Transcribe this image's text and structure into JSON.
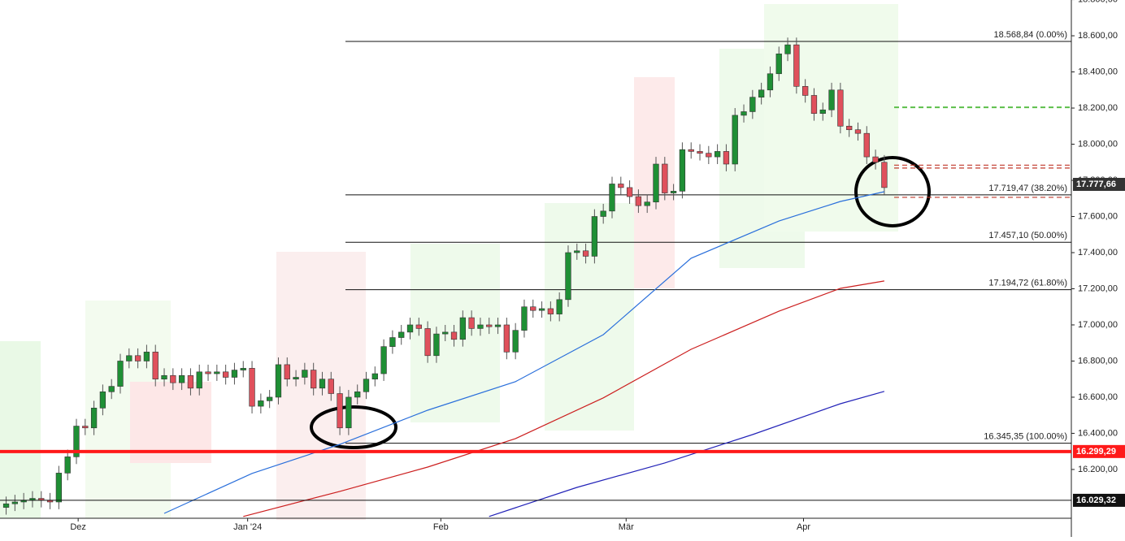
{
  "chart_data": {
    "type": "candlestick",
    "up_color": "#1f8f35",
    "down_color": "#e0505c",
    "grid": false,
    "xlim": [
      -0.7,
      121.3
    ],
    "xticks": [
      {
        "value": 8.2,
        "label": "Dez"
      },
      {
        "value": 27.5,
        "label": "Jan '24"
      },
      {
        "value": 49.5,
        "label": "Feb"
      },
      {
        "value": 70.6,
        "label": "Mär"
      },
      {
        "value": 90.8,
        "label": "Apr"
      }
    ],
    "ylim": [
      15930,
      18798
    ],
    "yticks": [
      {
        "value": 16200,
        "label": "16.200,00"
      },
      {
        "value": 16400,
        "label": "16.400,00"
      },
      {
        "value": 16600,
        "label": "16.600,00"
      },
      {
        "value": 16800,
        "label": "16.800,00"
      },
      {
        "value": 17000,
        "label": "17.000,00"
      },
      {
        "value": 17200,
        "label": "17.200,00"
      },
      {
        "value": 17400,
        "label": "17.400,00"
      },
      {
        "value": 17600,
        "label": "17.600,00"
      },
      {
        "value": 17800,
        "label": "17.800,00"
      },
      {
        "value": 18000,
        "label": "18.000,00"
      },
      {
        "value": 18200,
        "label": "18.200,00"
      },
      {
        "value": 18400,
        "label": "18.400,00"
      },
      {
        "value": 18600,
        "label": "18.600,00"
      },
      {
        "value": 18800,
        "label": "18.800,00"
      }
    ],
    "open": [
      15990,
      16010,
      16020,
      16030,
      16040,
      16030,
      16020,
      16180,
      16270,
      16440,
      16430,
      16540,
      16630,
      16660,
      16800,
      16830,
      16800,
      16850,
      16700,
      16720,
      16680,
      16720,
      16650,
      16740,
      16730,
      16740,
      16710,
      16750,
      16760,
      16550,
      16580,
      16600,
      16780,
      16700,
      16710,
      16750,
      16650,
      16700,
      16620,
      16430,
      16600,
      16630,
      16700,
      16730,
      16880,
      16930,
      16960,
      17000,
      16980,
      16830,
      16950,
      16960,
      16920,
      17040,
      16980,
      17000,
      16990,
      17000,
      16850,
      16970,
      17100,
      17080,
      17090,
      17060,
      17140,
      17400,
      17410,
      17380,
      17600,
      17630,
      17780,
      17760,
      17710,
      17660,
      17680,
      17890,
      17730,
      17740,
      17970,
      17960,
      17950,
      17930,
      17960,
      17890,
      18160,
      18180,
      18260,
      18300,
      18390,
      18500,
      18550,
      18320,
      18270,
      18170,
      18190,
      18300,
      18100,
      18080,
      18060,
      17930,
      17900
    ],
    "high": [
      16050,
      16060,
      16070,
      16080,
      16080,
      16070,
      16220,
      16310,
      16480,
      16480,
      16580,
      16670,
      16700,
      16840,
      16870,
      16870,
      16890,
      16890,
      16760,
      16760,
      16760,
      16760,
      16780,
      16780,
      16780,
      16780,
      16790,
      16800,
      16800,
      16620,
      16640,
      16820,
      16820,
      16750,
      16790,
      16790,
      16740,
      16740,
      16660,
      16640,
      16670,
      16740,
      16770,
      16920,
      16970,
      17000,
      17040,
      17040,
      17020,
      16990,
      17000,
      17000,
      17080,
      17080,
      17040,
      17040,
      17040,
      17040,
      17010,
      17140,
      17140,
      17130,
      17130,
      17180,
      17440,
      17450,
      17450,
      17640,
      17670,
      17820,
      17820,
      17800,
      17750,
      17720,
      17930,
      17930,
      17780,
      18010,
      18010,
      18000,
      17990,
      18000,
      18000,
      18200,
      18220,
      18300,
      18340,
      18430,
      18540,
      18590,
      18590,
      18360,
      18310,
      18230,
      18340,
      18340,
      18140,
      18120,
      18100,
      17970,
      17940
    ],
    "low": [
      15950,
      15970,
      15980,
      15990,
      15990,
      15980,
      15980,
      16140,
      16230,
      16390,
      16390,
      16500,
      16590,
      16620,
      16760,
      16760,
      16760,
      16660,
      16660,
      16640,
      16640,
      16610,
      16610,
      16690,
      16690,
      16670,
      16670,
      16710,
      16510,
      16510,
      16540,
      16560,
      16660,
      16660,
      16670,
      16610,
      16610,
      16580,
      16390,
      16390,
      16560,
      16590,
      16660,
      16690,
      16840,
      16890,
      16920,
      16940,
      16790,
      16790,
      16910,
      16880,
      16880,
      16940,
      16940,
      16950,
      16950,
      16810,
      16810,
      16930,
      17040,
      17040,
      17020,
      17020,
      17100,
      17360,
      17340,
      17340,
      17560,
      17590,
      17720,
      17670,
      17620,
      17620,
      17640,
      17690,
      17690,
      17700,
      17920,
      17910,
      17890,
      17890,
      17850,
      17850,
      18120,
      18140,
      18220,
      18260,
      18350,
      18460,
      18280,
      18230,
      18130,
      18130,
      18150,
      18060,
      18040,
      18020,
      17890,
      17860,
      17720
    ],
    "close": [
      16010,
      16020,
      16030,
      16040,
      16030,
      16020,
      16180,
      16270,
      16440,
      16430,
      16540,
      16630,
      16660,
      16800,
      16830,
      16800,
      16850,
      16700,
      16720,
      16680,
      16720,
      16650,
      16740,
      16730,
      16740,
      16710,
      16750,
      16760,
      16550,
      16580,
      16600,
      16780,
      16700,
      16710,
      16750,
      16650,
      16700,
      16620,
      16430,
      16600,
      16630,
      16700,
      16730,
      16880,
      16930,
      16960,
      17000,
      16980,
      16830,
      16950,
      16960,
      16920,
      17040,
      16980,
      17000,
      16990,
      17000,
      16850,
      16970,
      17100,
      17080,
      17090,
      17060,
      17140,
      17400,
      17410,
      17380,
      17600,
      17630,
      17780,
      17760,
      17710,
      17660,
      17680,
      17890,
      17730,
      17740,
      17970,
      17960,
      17950,
      17930,
      17960,
      17890,
      18160,
      18180,
      18260,
      18300,
      18390,
      18500,
      18550,
      18320,
      18270,
      18170,
      18190,
      18300,
      18100,
      18080,
      18060,
      17930,
      17900,
      17760
    ],
    "lines": [
      {
        "color": "#2a6fdb",
        "x": [
          18,
          28,
          38,
          48,
          58,
          68,
          78,
          88,
          95,
          100
        ],
        "values": [
          15957,
          16178,
          16339,
          16528,
          16686,
          16946,
          17369,
          17575,
          17683,
          17737
        ]
      },
      {
        "color": "#cc1f1f",
        "x": [
          27,
          38,
          48,
          58,
          68,
          78,
          88,
          95,
          100
        ],
        "values": [
          15940,
          16079,
          16213,
          16371,
          16596,
          16865,
          17076,
          17202,
          17243
        ]
      },
      {
        "color": "#2323b8",
        "x": [
          55,
          65,
          75,
          85,
          95,
          100
        ],
        "values": [
          15940,
          16101,
          16236,
          16393,
          16564,
          16632
        ]
      }
    ],
    "fib_levels": [
      {
        "value": 18568.84,
        "label": "18.568,84 (0.00%)"
      },
      {
        "value": 17719.47,
        "label": "17.719,47 (38.20%)"
      },
      {
        "value": 17457.1,
        "label": "17.457,10 (50.00%)"
      },
      {
        "value": 17194.72,
        "label": "17.194,72 (61.80%)"
      },
      {
        "value": 16345.35,
        "label": "16.345,35 (100.00%)"
      }
    ],
    "price_lines": [
      {
        "value": 16299.29,
        "label": "16.299,29",
        "color": "#ff1a1a"
      },
      {
        "value": 16029.32,
        "label": "16.029,32",
        "color": "#111111"
      },
      {
        "value": 17777.66,
        "label": "17.777,66",
        "color": "#333333"
      }
    ],
    "dashed_levels": [
      {
        "value": 18204,
        "color": "#5cbf4a"
      },
      {
        "value": 17884,
        "color": "#c0392b"
      },
      {
        "value": 17868,
        "color": "#c0392b"
      },
      {
        "value": 17706,
        "color": "#c0392b"
      }
    ]
  }
}
